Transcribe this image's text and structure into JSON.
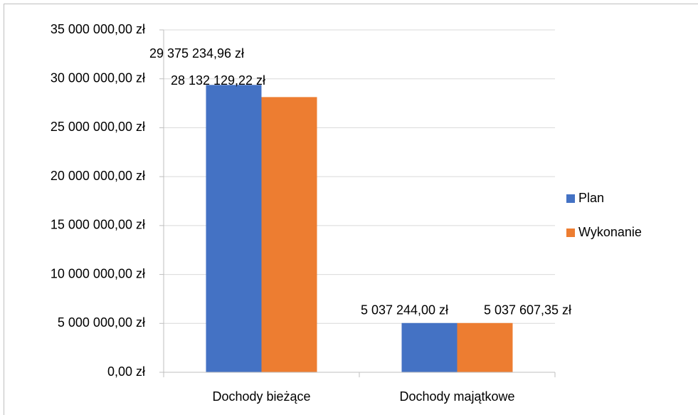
{
  "chart_data": {
    "type": "bar",
    "categories": [
      "Dochody bieżące",
      "Dochody majątkowe"
    ],
    "series": [
      {
        "name": "Plan",
        "color": "#4472c4",
        "values": [
          29375234.96,
          5037244.0
        ],
        "value_labels": [
          "29 375 234,96 zł",
          "5 037 244,00 zł"
        ]
      },
      {
        "name": "Wykonanie",
        "color": "#ed7d31",
        "values": [
          28132129.22,
          5037607.35
        ],
        "value_labels": [
          "28 132 129,22 zł",
          "5 037 607,35 zł"
        ]
      }
    ],
    "ylim": [
      0,
      35000000
    ],
    "yticks": [
      {
        "value": 0,
        "label": "0,00 zł"
      },
      {
        "value": 5000000,
        "label": "5 000 000,00 zł"
      },
      {
        "value": 10000000,
        "label": "10 000 000,00 zł"
      },
      {
        "value": 15000000,
        "label": "15 000 000,00 zł"
      },
      {
        "value": 20000000,
        "label": "20 000 000,00 zł"
      },
      {
        "value": 25000000,
        "label": "25 000 000,00 zł"
      },
      {
        "value": 30000000,
        "label": "30 000 000,00 zł"
      },
      {
        "value": 35000000,
        "label": "35 000 000,00 zł"
      }
    ],
    "grid": true,
    "legend": "right"
  }
}
